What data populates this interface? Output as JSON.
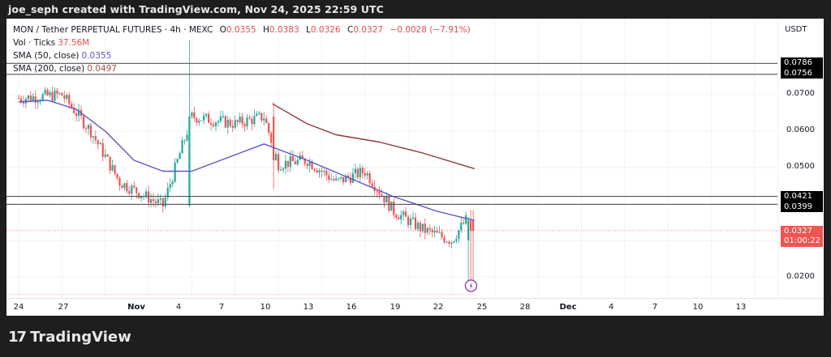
{
  "header": {
    "attribution": "joe_seph created with TradingView.com, Nov 24, 2025 22:59 UTC"
  },
  "legend": {
    "symbol": "MON / Tether PERPETUAL FUTURES · 4h · MEXC",
    "open_label": "O",
    "open": "0.0355",
    "high_label": "H",
    "high": "0.0383",
    "low_label": "L",
    "low": "0.0326",
    "close_label": "C",
    "close": "0.0327",
    "change": "−0.0028 (−7.91%)",
    "volume_label": "Vol · Ticks",
    "volume": "37.56M",
    "sma50_label": "SMA (50, close)",
    "sma50": "0.0355",
    "sma200_label": "SMA (200, close)",
    "sma200": "0.0497"
  },
  "price_axis": {
    "currency": "USDT",
    "ticks": [
      "0.0700",
      "0.0600",
      "0.0500",
      "0.0200"
    ],
    "levels": [
      "0.0786",
      "0.0756",
      "0.0421",
      "0.0399"
    ],
    "current_price": "0.0327",
    "countdown": "01:00:22"
  },
  "time_axis": {
    "labels": [
      "24",
      "27",
      "Nov",
      "4",
      "7",
      "10",
      "13",
      "16",
      "19",
      "22",
      "25",
      "28",
      "Dec",
      "4",
      "7",
      "10",
      "13"
    ]
  },
  "footer": {
    "logo_mark": "17",
    "logo_text": "TradingView"
  },
  "colors": {
    "up": "#26a69a",
    "down": "#ef5350",
    "sma50": "#5b57c9",
    "sma200": "#8f3a3a",
    "level_line": "#555555",
    "current_price": "#f05350"
  },
  "chart_data": {
    "type": "candlestick",
    "title": "MON / Tether PERPETUAL FUTURES · 4h · MEXC",
    "xlabel": "",
    "ylabel": "USDT",
    "ylim": [
      0.0165,
      0.084
    ],
    "x_ticks": [
      "24 Oct",
      "27 Oct",
      "Nov",
      "4 Nov",
      "7 Nov",
      "10 Nov",
      "13 Nov",
      "16 Nov",
      "19 Nov",
      "22 Nov",
      "25 Nov",
      "28 Nov",
      "Dec",
      "4 Dec",
      "7 Dec",
      "10 Dec",
      "13 Dec"
    ],
    "y_ticks": [
      0.07,
      0.06,
      0.05,
      0.02
    ],
    "last_bar": {
      "open": 0.0355,
      "high": 0.0383,
      "low": 0.0326,
      "close": 0.0327,
      "change": -0.0028,
      "change_pct": -7.91
    },
    "volume": "37.56M",
    "horizontal_levels": [
      0.0786,
      0.0756,
      0.0421,
      0.0399
    ],
    "approx_close_path": [
      {
        "date": "Oct 24",
        "close": 0.069
      },
      {
        "date": "Oct 27",
        "close": 0.07
      },
      {
        "date": "Oct 29",
        "close": 0.06
      },
      {
        "date": "Oct 31",
        "close": 0.046
      },
      {
        "date": "Nov 3",
        "close": 0.0395
      },
      {
        "date": "Nov 5",
        "close": 0.064
      },
      {
        "date": "Nov 8",
        "close": 0.062
      },
      {
        "date": "Nov 10",
        "close": 0.064
      },
      {
        "date": "Nov 11",
        "close": 0.051
      },
      {
        "date": "Nov 13",
        "close": 0.052
      },
      {
        "date": "Nov 15",
        "close": 0.046
      },
      {
        "date": "Nov 17",
        "close": 0.049
      },
      {
        "date": "Nov 19",
        "close": 0.038
      },
      {
        "date": "Nov 21",
        "close": 0.033
      },
      {
        "date": "Nov 23",
        "close": 0.03
      },
      {
        "date": "Nov 24",
        "close": 0.0355
      },
      {
        "date": "Nov 24",
        "close": 0.0327
      }
    ],
    "series": [
      {
        "name": "SMA (50, close)",
        "last": 0.0355,
        "approx_values": [
          0.068,
          0.0685,
          0.066,
          0.06,
          0.052,
          0.049,
          0.049,
          0.052,
          0.0565,
          0.052,
          0.047,
          0.042,
          0.038,
          0.0355
        ]
      },
      {
        "name": "SMA (200, close)",
        "last": 0.0497,
        "approx_values": [
          0.0675,
          0.062,
          0.059,
          0.057,
          0.054,
          0.0497
        ]
      }
    ]
  }
}
